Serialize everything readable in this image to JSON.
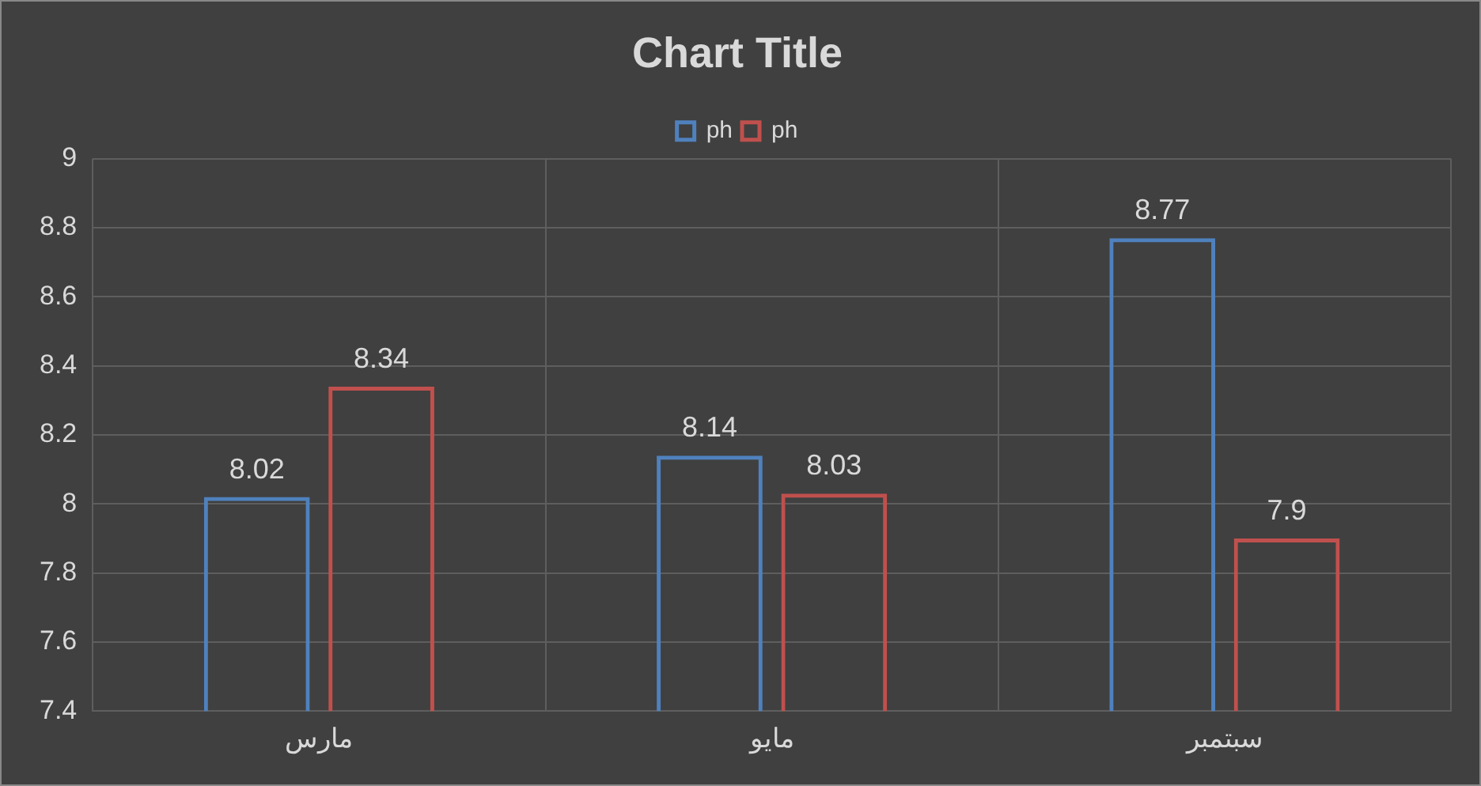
{
  "chart_data": {
    "type": "bar",
    "title": "Chart Title",
    "categories": [
      "مارس",
      "مايو",
      "سبتمبر"
    ],
    "series": [
      {
        "name": "ph",
        "color": "#4f81bd",
        "values": [
          8.02,
          8.14,
          8.77
        ]
      },
      {
        "name": "ph",
        "color": "#c0504d",
        "values": [
          8.34,
          8.03,
          7.9
        ]
      }
    ],
    "ylim": [
      7.4,
      9
    ],
    "yticks": [
      7.4,
      7.6,
      7.8,
      8,
      8.2,
      8.4,
      8.6,
      8.8,
      9
    ],
    "grid": true,
    "legend": "top",
    "data_labels": true
  }
}
